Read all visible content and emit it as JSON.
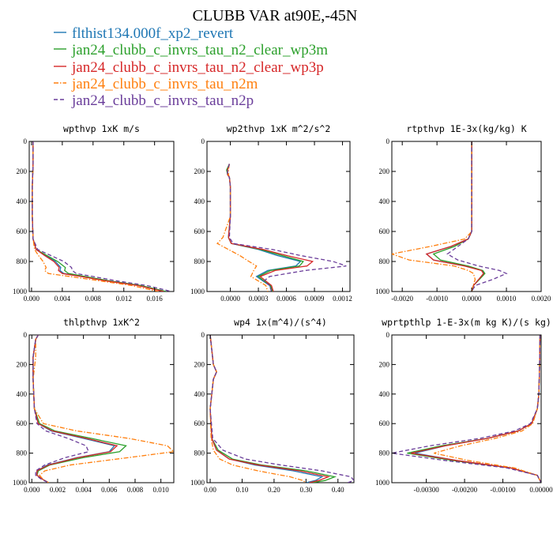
{
  "figure": {
    "title": "CLUBB VAR at90E,-45N",
    "legend": [
      {
        "label": "flthist134.000f_xp2_revert",
        "color": "#1f77b4",
        "dash": "solid"
      },
      {
        "label": "jan24_clubb_c_invrs_tau_n2_clear_wp3m",
        "color": "#2ca02c",
        "dash": "solid"
      },
      {
        "label": "jan24_clubb_c_invrs_tau_n2_clear_wp3p",
        "color": "#d62728",
        "dash": "solid"
      },
      {
        "label": "jan24_clubb_c_invrs_tau_n2m",
        "color": "#ff7f0e",
        "dash": "dashdot"
      },
      {
        "label": "jan24_clubb_c_invrs_tau_n2p",
        "color": "#6a3d9a",
        "dash": "dash"
      }
    ]
  },
  "chart_data": [
    {
      "type": "line",
      "title": "wpthvp  1xK m/s",
      "xlim": [
        -0.0003,
        0.0185
      ],
      "ylim": [
        1000,
        0
      ],
      "xticks": [
        0.0,
        0.004,
        0.008,
        0.012,
        0.016
      ],
      "xtick_labels": [
        "0.000",
        "0.004",
        "0.008",
        "0.012",
        "0.016"
      ],
      "yticks": [
        0,
        200,
        400,
        600,
        800,
        1000
      ],
      "ytick_labels": [
        "0",
        "200",
        "400",
        "600",
        "800",
        "1000"
      ],
      "y": [
        0,
        150,
        300,
        500,
        650,
        720,
        760,
        800,
        840,
        860,
        880,
        900,
        930,
        960,
        1000
      ],
      "series": [
        {
          "name": "flthist134.000f_xp2_revert",
          "x": [
            0.0002,
            0.0002,
            0.0001,
            0.0001,
            0.0002,
            0.0006,
            0.0018,
            0.0031,
            0.0038,
            0.0037,
            0.0042,
            0.0067,
            0.01,
            0.014,
            0.0175
          ]
        },
        {
          "name": "jan24_clubb_c_invrs_tau_n2_clear_wp3m",
          "x": [
            0.0002,
            0.0002,
            0.0001,
            0.0001,
            0.0002,
            0.0006,
            0.002,
            0.0034,
            0.0044,
            0.0043,
            0.0048,
            0.007,
            0.0102,
            0.0142,
            0.0175
          ]
        },
        {
          "name": "jan24_clubb_c_invrs_tau_n2_clear_wp3p",
          "x": [
            0.0002,
            0.0002,
            0.0001,
            0.0001,
            0.0002,
            0.0006,
            0.0017,
            0.0029,
            0.0036,
            0.0035,
            0.004,
            0.0064,
            0.0098,
            0.0138,
            0.0172
          ]
        },
        {
          "name": "jan24_clubb_c_invrs_tau_n2m",
          "x": [
            0.0002,
            0.0002,
            0.0001,
            0.0001,
            0.0002,
            0.0004,
            0.0009,
            0.0015,
            0.0019,
            0.0017,
            0.0022,
            0.005,
            0.009,
            0.013,
            0.0165
          ]
        },
        {
          "name": "jan24_clubb_c_invrs_tau_n2p",
          "x": [
            0.0002,
            0.0002,
            0.0001,
            0.0001,
            0.0002,
            0.0008,
            0.0025,
            0.0042,
            0.0052,
            0.0053,
            0.0058,
            0.008,
            0.0112,
            0.015,
            0.0182
          ]
        }
      ]
    },
    {
      "type": "line",
      "title": "wp2thvp  1xK m^2/s^2",
      "xlim": [
        -0.00025,
        0.00128
      ],
      "ylim": [
        1000,
        0
      ],
      "xticks": [
        0.0,
        0.0003,
        0.0006,
        0.0009,
        0.0012
      ],
      "xtick_labels": [
        "0.0000",
        "0.0003",
        "0.0006",
        "0.0009",
        "0.0012"
      ],
      "yticks": [
        0,
        200,
        400,
        600,
        800,
        1000
      ],
      "ytick_labels": [
        "0",
        "200",
        "400",
        "600",
        "800",
        "1000"
      ],
      "y": [
        150,
        190,
        220,
        240,
        300,
        500,
        640,
        680,
        720,
        760,
        800,
        830,
        860,
        900,
        930,
        960,
        1000
      ],
      "series": [
        {
          "name": "flthist134.000f_xp2_revert",
          "x": [
            -1e-05,
            -3e-05,
            -3e-05,
            -1e-05,
            0.0,
            0.0,
            -2e-05,
            1e-05,
            0.0003,
            0.0005,
            0.00075,
            0.0007,
            0.0004,
            0.00028,
            0.00035,
            0.00042,
            0.00045
          ]
        },
        {
          "name": "jan24_clubb_c_invrs_tau_n2_clear_wp3m",
          "x": [
            -1e-05,
            -4e-05,
            -3e-05,
            -1e-05,
            0.0,
            0.0,
            -2e-05,
            1e-05,
            0.00032,
            0.00055,
            0.00078,
            0.00074,
            0.00043,
            0.0003,
            0.00036,
            0.00043,
            0.00045
          ]
        },
        {
          "name": "jan24_clubb_c_invrs_tau_n2_clear_wp3p",
          "x": [
            -1e-05,
            -3e-05,
            -3e-05,
            -1e-05,
            0.0,
            0.0,
            -2e-05,
            1e-05,
            0.00035,
            0.0006,
            0.00088,
            0.00082,
            0.00048,
            0.00032,
            0.00038,
            0.00044,
            0.00046
          ]
        },
        {
          "name": "jan24_clubb_c_invrs_tau_n2m",
          "x": [
            -1e-05,
            -2e-05,
            -2e-05,
            -1e-05,
            0.0,
            0.0,
            -8e-05,
            -0.00014,
            -2e-05,
            0.0001,
            0.0002,
            0.00028,
            0.00025,
            0.00022,
            0.0003,
            0.00038,
            0.0004
          ]
        },
        {
          "name": "jan24_clubb_c_invrs_tau_n2p",
          "x": [
            -1e-05,
            -3e-05,
            -3e-05,
            -1e-05,
            0.0,
            0.0,
            -1e-05,
            3e-05,
            0.00045,
            0.00075,
            0.0011,
            0.00124,
            0.0008,
            0.00042,
            0.00036,
            0.00042,
            0.00044
          ]
        }
      ]
    },
    {
      "type": "line",
      "title": "rtpthvp  1E-3x(kg/kg) K",
      "xlim": [
        -0.0023,
        0.002
      ],
      "ylim": [
        1000,
        0
      ],
      "xticks": [
        -0.002,
        -0.001,
        0.0,
        0.001,
        0.002
      ],
      "xtick_labels": [
        "-0.0020",
        "-0.0010",
        "0.0000",
        "0.0010",
        "0.0020"
      ],
      "yticks": [
        0,
        200,
        400,
        600,
        800,
        1000
      ],
      "ytick_labels": [
        "0",
        "200",
        "400",
        "600",
        "800",
        "1000"
      ],
      "y": [
        0,
        200,
        400,
        600,
        650,
        700,
        750,
        790,
        830,
        860,
        880,
        920,
        960,
        1000
      ],
      "series": [
        {
          "name": "flthist134.000f_xp2_revert",
          "x": [
            0.0,
            0.0,
            0.0,
            0.0,
            -0.0001,
            -0.0006,
            -0.0013,
            -0.0011,
            -0.0002,
            0.0003,
            0.00035,
            0.0002,
            5e-05,
            0.0
          ]
        },
        {
          "name": "jan24_clubb_c_invrs_tau_n2_clear_wp3m",
          "x": [
            0.0,
            0.0,
            0.0,
            0.0,
            -0.0001,
            -0.0005,
            -0.0011,
            -0.0009,
            -0.0001,
            0.00032,
            0.00038,
            0.00022,
            5e-05,
            0.0
          ]
        },
        {
          "name": "jan24_clubb_c_invrs_tau_n2_clear_wp3p",
          "x": [
            0.0,
            0.0,
            0.0,
            0.0,
            -0.0001,
            -0.0006,
            -0.0013,
            -0.0011,
            -0.0002,
            0.00028,
            0.00034,
            0.0002,
            5e-05,
            0.0
          ]
        },
        {
          "name": "jan24_clubb_c_invrs_tau_n2m",
          "x": [
            0.0,
            0.0,
            0.0,
            0.0,
            -0.0002,
            -0.0012,
            -0.0023,
            -0.0018,
            -0.0005,
            -0.0001,
            5e-05,
            0.0001,
            4e-05,
            0.0
          ]
        },
        {
          "name": "jan24_clubb_c_invrs_tau_n2p",
          "x": [
            0.0,
            0.0,
            0.0,
            0.0,
            -0.0001,
            -0.0004,
            -0.0007,
            -0.0004,
            0.0002,
            0.0008,
            0.001,
            0.0006,
            0.0001,
            0.0
          ]
        }
      ]
    },
    {
      "type": "line",
      "title": "thlpthvp  1xK^2",
      "xlim": [
        -0.0002,
        0.011
      ],
      "ylim": [
        1000,
        0
      ],
      "xticks": [
        0.0,
        0.002,
        0.004,
        0.006,
        0.008,
        0.01
      ],
      "xtick_labels": [
        "0.000",
        "0.002",
        "0.004",
        "0.006",
        "0.008",
        "0.010"
      ],
      "yticks": [
        0,
        200,
        400,
        600,
        800,
        1000
      ],
      "ytick_labels": [
        "0",
        "200",
        "400",
        "600",
        "800",
        "1000"
      ],
      "y": [
        0,
        30,
        150,
        300,
        500,
        600,
        650,
        700,
        750,
        790,
        830,
        880,
        920,
        950,
        980,
        1000
      ],
      "series": [
        {
          "name": "flthist134.000f_xp2_revert",
          "x": [
            0.0005,
            0.0003,
            0.0001,
            0.0001,
            0.0002,
            0.0005,
            0.0015,
            0.004,
            0.0064,
            0.006,
            0.0035,
            0.0012,
            0.0004,
            0.0004,
            0.0009,
            0.0013
          ]
        },
        {
          "name": "jan24_clubb_c_invrs_tau_n2_clear_wp3m",
          "x": [
            0.0005,
            0.0003,
            0.0001,
            0.0001,
            0.0002,
            0.0006,
            0.0018,
            0.0046,
            0.0073,
            0.0068,
            0.004,
            0.0014,
            0.0005,
            0.0004,
            0.0009,
            0.0013
          ]
        },
        {
          "name": "jan24_clubb_c_invrs_tau_n2_clear_wp3p",
          "x": [
            0.0005,
            0.0003,
            0.0001,
            0.0001,
            0.0002,
            0.0005,
            0.0016,
            0.0042,
            0.0066,
            0.0061,
            0.0036,
            0.0013,
            0.0004,
            0.0004,
            0.0009,
            0.0013
          ]
        },
        {
          "name": "jan24_clubb_c_invrs_tau_n2m",
          "x": [
            0.0005,
            0.0003,
            0.0003,
            0.0001,
            0.0002,
            0.0009,
            0.0035,
            0.0075,
            0.0105,
            0.011,
            0.0075,
            0.003,
            0.001,
            0.0006,
            0.0009,
            0.0013
          ]
        },
        {
          "name": "jan24_clubb_c_invrs_tau_n2p",
          "x": [
            0.0005,
            0.0003,
            0.0001,
            0.0001,
            0.0002,
            0.0004,
            0.0011,
            0.0028,
            0.0042,
            0.0044,
            0.0026,
            0.001,
            0.0003,
            0.0003,
            0.0008,
            0.0013
          ]
        }
      ]
    },
    {
      "type": "line",
      "title": "wp4  1x(m^4)/(s^4)",
      "xlim": [
        -0.01,
        0.45
      ],
      "ylim": [
        1000,
        0
      ],
      "xticks": [
        0.0,
        0.1,
        0.2,
        0.3,
        0.4
      ],
      "xtick_labels": [
        "0.00",
        "0.10",
        "0.20",
        "0.30",
        "0.40"
      ],
      "yticks": [
        0,
        200,
        400,
        600,
        800,
        1000
      ],
      "ytick_labels": [
        "0",
        "200",
        "400",
        "600",
        "800",
        "1000"
      ],
      "y": [
        0,
        200,
        250,
        300,
        500,
        700,
        780,
        840,
        880,
        920,
        960,
        985,
        1000
      ],
      "series": [
        {
          "name": "flthist134.000f_xp2_revert",
          "x": [
            0.0,
            0.01,
            0.02,
            0.01,
            0.0,
            0.005,
            0.02,
            0.06,
            0.14,
            0.26,
            0.35,
            0.33,
            0.3
          ]
        },
        {
          "name": "jan24_clubb_c_invrs_tau_n2_clear_wp3m",
          "x": [
            0.0,
            0.01,
            0.02,
            0.01,
            0.0,
            0.005,
            0.025,
            0.07,
            0.16,
            0.3,
            0.39,
            0.36,
            0.32
          ]
        },
        {
          "name": "jan24_clubb_c_invrs_tau_n2_clear_wp3p",
          "x": [
            0.0,
            0.01,
            0.02,
            0.01,
            0.0,
            0.005,
            0.02,
            0.06,
            0.15,
            0.28,
            0.37,
            0.34,
            0.31
          ]
        },
        {
          "name": "jan24_clubb_c_invrs_tau_n2m",
          "x": [
            0.0,
            0.01,
            0.02,
            0.01,
            0.0,
            0.003,
            0.01,
            0.03,
            0.07,
            0.15,
            0.25,
            0.29,
            0.3
          ]
        },
        {
          "name": "jan24_clubb_c_invrs_tau_n2p",
          "x": [
            0.0,
            0.01,
            0.02,
            0.01,
            0.0,
            0.008,
            0.04,
            0.11,
            0.22,
            0.35,
            0.44,
            0.45,
            0.43
          ]
        }
      ]
    },
    {
      "type": "line",
      "title": "wprtpthlp  1-E-3x(m kg K)/(s kg)",
      "xlim": [
        -0.0039,
        0.0
      ],
      "ylim": [
        1000,
        0
      ],
      "xticks": [
        -0.003,
        -0.002,
        -0.001,
        0.0
      ],
      "xtick_labels": [
        "-0.00300",
        "-0.00200",
        "-0.00100",
        "0.00000"
      ],
      "yticks": [
        0,
        200,
        400,
        600,
        800,
        1000
      ],
      "ytick_labels": [
        "0",
        "200",
        "400",
        "600",
        "800",
        "1000"
      ],
      "y": [
        0,
        200,
        400,
        500,
        600,
        650,
        700,
        750,
        800,
        850,
        900,
        950,
        1000
      ],
      "series": [
        {
          "name": "flthist134.000f_xp2_revert",
          "x": [
            -3e-05,
            -4e-05,
            -6e-05,
            -0.0001,
            -0.00025,
            -0.0006,
            -0.0014,
            -0.0025,
            -0.0033,
            -0.0022,
            -0.0008,
            -0.0001,
            0.0
          ]
        },
        {
          "name": "jan24_clubb_c_invrs_tau_n2_clear_wp3m",
          "x": [
            -3e-05,
            -4e-05,
            -6e-05,
            -0.0001,
            -0.00025,
            -0.0006,
            -0.0014,
            -0.0026,
            -0.0035,
            -0.0023,
            -0.0008,
            -0.0001,
            0.0
          ]
        },
        {
          "name": "jan24_clubb_c_invrs_tau_n2_clear_wp3p",
          "x": [
            -3e-05,
            -4e-05,
            -6e-05,
            -0.0001,
            -0.00025,
            -0.0006,
            -0.0014,
            -0.0025,
            -0.0034,
            -0.0022,
            -0.0008,
            -0.0001,
            0.0
          ]
        },
        {
          "name": "jan24_clubb_c_invrs_tau_n2m",
          "x": [
            -3e-05,
            -4e-05,
            -6e-05,
            -0.0001,
            -0.00022,
            -0.0005,
            -0.0012,
            -0.0021,
            -0.0028,
            -0.0019,
            -0.0007,
            -0.0001,
            0.0
          ]
        },
        {
          "name": "jan24_clubb_c_invrs_tau_n2p",
          "x": [
            -3e-05,
            -4e-05,
            -6e-05,
            -0.0001,
            -0.00028,
            -0.0007,
            -0.0016,
            -0.0029,
            -0.0039,
            -0.0025,
            -0.0009,
            -0.0001,
            0.0
          ]
        }
      ]
    }
  ]
}
